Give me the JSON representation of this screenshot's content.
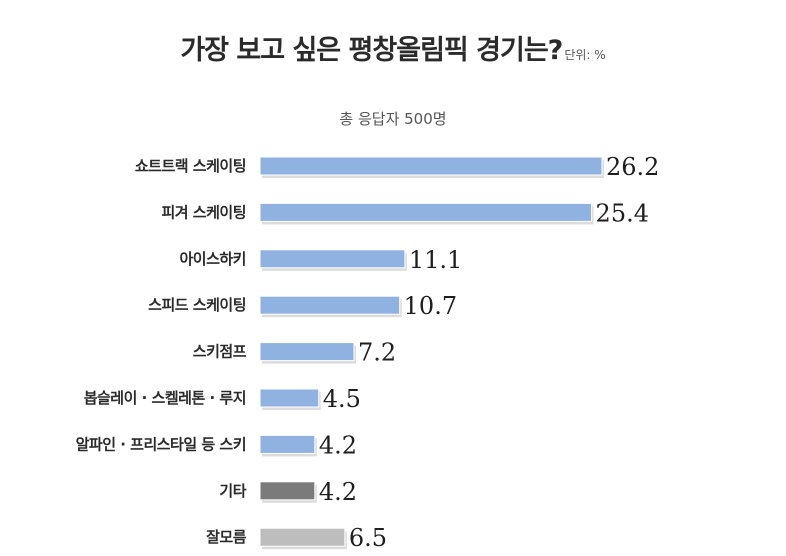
{
  "chart_data": {
    "type": "bar",
    "orientation": "horizontal",
    "title": "가장 보고 싶은 평창올림픽 경기는?",
    "unit_label": "단위: %",
    "subtitle": "총 응답자 500명",
    "categories": [
      "쇼트트랙 스케이팅",
      "피겨 스케이팅",
      "아이스하키",
      "스피드 스케이팅",
      "스키점프",
      "봅슬레이 · 스켈레톤 · 루지",
      "알파인 · 프리스타일 등 스키",
      "기타",
      "잘모름"
    ],
    "values": [
      26.2,
      25.4,
      11.1,
      10.7,
      7.2,
      4.5,
      4.2,
      4.2,
      6.5
    ],
    "value_labels": [
      "26.2",
      "25.4",
      "11.1",
      "10.7",
      "7.2",
      "4.5",
      "4.2",
      "4.2",
      "6.5"
    ],
    "bar_colors": [
      "#8fb2e0",
      "#8fb2e0",
      "#8fb2e0",
      "#8fb2e0",
      "#8fb2e0",
      "#8fb2e0",
      "#8fb2e0",
      "#7b7b7b",
      "#bdbdbd"
    ],
    "label_colors": [
      "#1e1e1e",
      "#1e1e1e",
      "#1e1e1e",
      "#1e1e1e",
      "#1e1e1e",
      "#1e1e1e",
      "#1e1e1e",
      "#1e1e1e",
      "#888888"
    ],
    "xlim": [
      0,
      26.2
    ],
    "xlabel": "",
    "ylabel": "",
    "grid": false,
    "legend": "none"
  }
}
